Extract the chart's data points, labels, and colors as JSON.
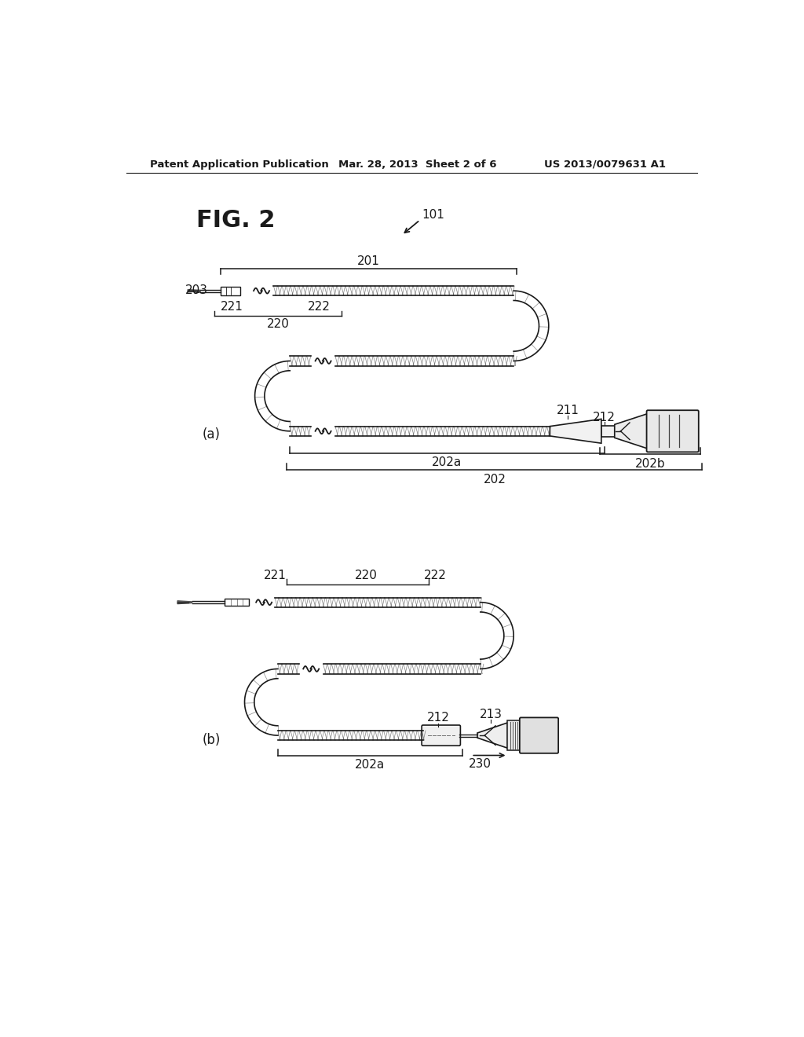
{
  "bg_color": "#ffffff",
  "text_color": "#1a1a1a",
  "header_left": "Patent Application Publication",
  "header_center": "Mar. 28, 2013  Sheet 2 of 6",
  "header_right": "US 2013/0079631 A1",
  "fig_label": "FIG. 2",
  "label_101": "101",
  "label_201": "201",
  "label_203": "203",
  "label_221a": "221",
  "label_222a": "222",
  "label_220a": "220",
  "label_211": "211",
  "label_212a": "212",
  "label_202a": "202a",
  "label_202b": "202b",
  "label_202": "202",
  "label_a": "(a)",
  "label_220b": "220",
  "label_221b": "221",
  "label_222b": "222",
  "label_212b": "212",
  "label_213": "213",
  "label_202a_b": "202a",
  "label_230": "230",
  "label_b": "(b)"
}
